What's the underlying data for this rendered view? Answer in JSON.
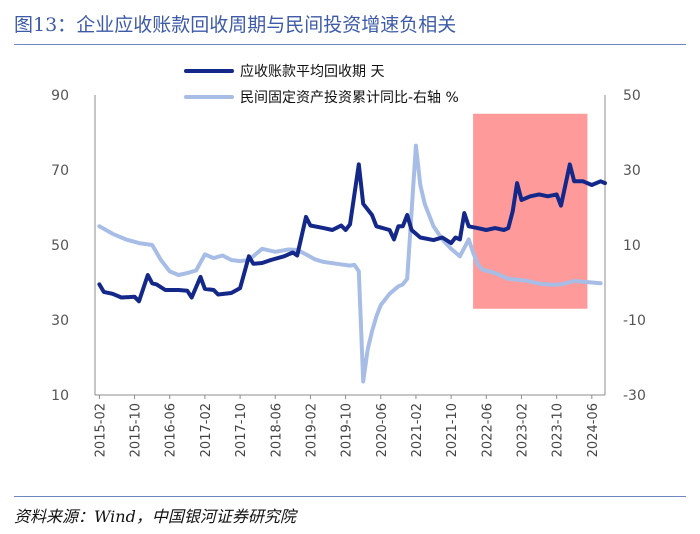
{
  "header": {
    "title_prefix": "图13：",
    "title_text": "企业应收账款回收周期与民间投资增速负相关"
  },
  "footer": {
    "source": "资料来源：Wind，中国银河证券研究院"
  },
  "colors": {
    "series1": "#14288a",
    "series2": "#a8bde6",
    "highlight": "#ff9a9a",
    "title": "#3e5ba8"
  },
  "chart_data": {
    "type": "line",
    "title": "",
    "xlabel": "",
    "ylabel": "",
    "x_ticks": [
      "2015-02",
      "2015-10",
      "2016-06",
      "2017-02",
      "2017-10",
      "2018-06",
      "2019-02",
      "2019-10",
      "2020-06",
      "2021-02",
      "2021-10",
      "2022-06",
      "2023-02",
      "2023-10",
      "2024-06"
    ],
    "y_left": {
      "ticks": [
        90,
        70,
        50,
        30,
        10
      ],
      "lim": [
        10,
        90
      ]
    },
    "y_right": {
      "ticks": [
        50,
        30,
        10,
        -10,
        -30
      ],
      "lim": [
        -30,
        50
      ]
    },
    "x_lim": [
      "2015-01",
      "2024-09"
    ],
    "highlight_range": {
      "x": [
        "2022-03",
        "2024-05"
      ],
      "y_left": [
        33,
        85
      ]
    },
    "legend_position": "top-center",
    "series": [
      {
        "name": "应收账款平均回收期 天",
        "axis": "left",
        "points": [
          [
            "2015-02",
            39.5
          ],
          [
            "2015-03",
            37.5
          ],
          [
            "2015-05",
            37
          ],
          [
            "2015-07",
            36
          ],
          [
            "2015-10",
            36.2
          ],
          [
            "2015-11",
            35
          ],
          [
            "2016-01",
            42
          ],
          [
            "2016-02",
            39.8
          ],
          [
            "2016-03",
            39.5
          ],
          [
            "2016-05",
            38
          ],
          [
            "2016-08",
            38
          ],
          [
            "2016-10",
            37.8
          ],
          [
            "2016-11",
            36
          ],
          [
            "2017-01",
            41.5
          ],
          [
            "2017-02",
            38.3
          ],
          [
            "2017-04",
            38
          ],
          [
            "2017-05",
            36.8
          ],
          [
            "2017-08",
            37.2
          ],
          [
            "2017-10",
            38.5
          ],
          [
            "2017-12",
            47
          ],
          [
            "2018-01",
            45
          ],
          [
            "2018-03",
            45.2
          ],
          [
            "2018-05",
            46
          ],
          [
            "2018-08",
            47
          ],
          [
            "2018-10",
            48
          ],
          [
            "2018-11",
            47.2
          ],
          [
            "2019-01",
            57.5
          ],
          [
            "2019-02",
            55.2
          ],
          [
            "2019-05",
            54.5
          ],
          [
            "2019-07",
            54
          ],
          [
            "2019-09",
            55.2
          ],
          [
            "2019-10",
            54
          ],
          [
            "2019-11",
            55.5
          ],
          [
            "2020-01",
            71.5
          ],
          [
            "2020-02",
            61
          ],
          [
            "2020-04",
            58
          ],
          [
            "2020-05",
            55
          ],
          [
            "2020-08",
            54
          ],
          [
            "2020-09",
            51.5
          ],
          [
            "2020-10",
            55
          ],
          [
            "2020-11",
            55
          ],
          [
            "2020-12",
            58
          ],
          [
            "2021-01",
            54
          ],
          [
            "2021-03",
            52
          ],
          [
            "2021-06",
            51.3
          ],
          [
            "2021-08",
            52
          ],
          [
            "2021-10",
            50.5
          ],
          [
            "2021-11",
            52
          ],
          [
            "2021-12",
            51.5
          ],
          [
            "2022-01",
            58.5
          ],
          [
            "2022-02",
            55
          ],
          [
            "2022-04",
            54.5
          ],
          [
            "2022-06",
            54
          ],
          [
            "2022-08",
            54.5
          ],
          [
            "2022-10",
            54
          ],
          [
            "2022-11",
            54.5
          ],
          [
            "2022-12",
            59
          ],
          [
            "2023-01",
            66.5
          ],
          [
            "2023-02",
            62
          ],
          [
            "2023-04",
            63
          ],
          [
            "2023-06",
            63.5
          ],
          [
            "2023-08",
            63
          ],
          [
            "2023-10",
            63.5
          ],
          [
            "2023-11",
            60.5
          ],
          [
            "2024-01",
            71.5
          ],
          [
            "2024-02",
            67
          ],
          [
            "2024-04",
            67
          ],
          [
            "2024-06",
            66
          ],
          [
            "2024-08",
            67
          ],
          [
            "2024-09",
            66.5
          ]
        ]
      },
      {
        "name": "民间固定资产投资累计同比-右轴 %",
        "axis": "right",
        "points": [
          [
            "2015-02",
            15
          ],
          [
            "2015-05",
            13
          ],
          [
            "2015-08",
            11.5
          ],
          [
            "2015-11",
            10.5
          ],
          [
            "2016-02",
            10
          ],
          [
            "2016-04",
            6
          ],
          [
            "2016-06",
            3
          ],
          [
            "2016-08",
            2
          ],
          [
            "2016-10",
            2.5
          ],
          [
            "2016-12",
            3.2
          ],
          [
            "2017-02",
            7.5
          ],
          [
            "2017-04",
            6.5
          ],
          [
            "2017-06",
            7.2
          ],
          [
            "2017-08",
            6
          ],
          [
            "2017-10",
            5.7
          ],
          [
            "2017-12",
            6
          ],
          [
            "2018-03",
            9
          ],
          [
            "2018-06",
            8.2
          ],
          [
            "2018-09",
            8.8
          ],
          [
            "2018-11",
            8.7
          ],
          [
            "2019-01",
            7.5
          ],
          [
            "2019-03",
            6.2
          ],
          [
            "2019-05",
            5.5
          ],
          [
            "2019-08",
            5
          ],
          [
            "2019-11",
            4.5
          ],
          [
            "2019-12",
            4.7
          ],
          [
            "2020-01",
            3
          ],
          [
            "2020-02",
            -26.4
          ],
          [
            "2020-03",
            -18
          ],
          [
            "2020-04",
            -13
          ],
          [
            "2020-05",
            -9
          ],
          [
            "2020-06",
            -6
          ],
          [
            "2020-08",
            -3
          ],
          [
            "2020-10",
            -1
          ],
          [
            "2020-11",
            -0.5
          ],
          [
            "2020-12",
            1
          ],
          [
            "2021-02",
            36.5
          ],
          [
            "2021-03",
            26
          ],
          [
            "2021-04",
            21
          ],
          [
            "2021-06",
            15
          ],
          [
            "2021-08",
            11.5
          ],
          [
            "2021-10",
            9
          ],
          [
            "2021-11",
            8
          ],
          [
            "2021-12",
            7
          ],
          [
            "2022-02",
            11.5
          ],
          [
            "2022-03",
            8
          ],
          [
            "2022-04",
            5
          ],
          [
            "2022-05",
            3.5
          ],
          [
            "2022-08",
            2.5
          ],
          [
            "2022-11",
            1
          ],
          [
            "2023-03",
            0.5
          ],
          [
            "2023-06",
            -0.3
          ],
          [
            "2023-09",
            -0.6
          ],
          [
            "2023-11",
            -0.5
          ],
          [
            "2024-02",
            0.4
          ],
          [
            "2024-05",
            0.1
          ],
          [
            "2024-08",
            -0.2
          ]
        ]
      }
    ]
  }
}
